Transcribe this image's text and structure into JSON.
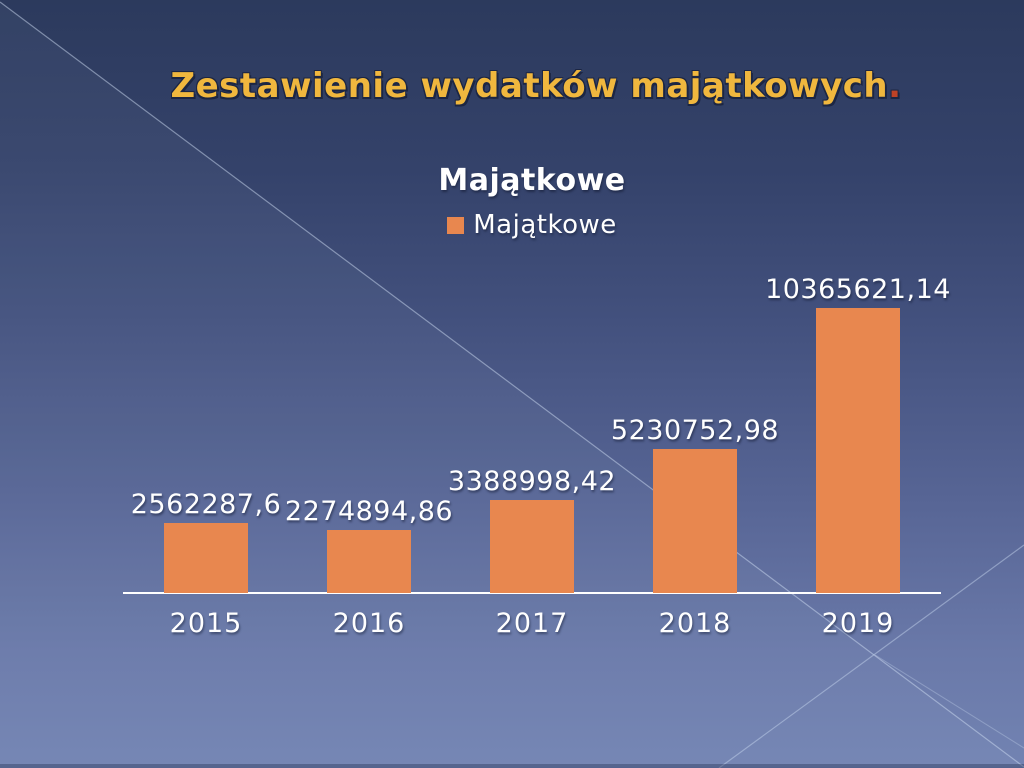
{
  "slide": {
    "title": "Zestawienie wydatków majątkowych",
    "title_period": ".",
    "title_color": "#F0B73E",
    "title_period_color": "#BF4226",
    "background_top_color": "#2c3a5d",
    "background_bottom_color": "#7283B2"
  },
  "chart_data": {
    "type": "bar",
    "title": "Majątkowe",
    "series": [
      {
        "name": "Majątkowe",
        "values": [
          2562287.6,
          2274894.86,
          3388998.42,
          5230752.98,
          10365621.14
        ]
      }
    ],
    "categories": [
      "2015",
      "2016",
      "2017",
      "2018",
      "2019"
    ],
    "data_labels": [
      "2562287,6",
      "2274894,86",
      "3388998,42",
      "5230752,98",
      "10365621,14"
    ],
    "bar_color": "#E8874F",
    "axis_line_color": "#ffffff",
    "text_color": "#ffffff",
    "ylim": [
      0,
      10365621.14
    ],
    "grid": false,
    "legend_position": "top",
    "legend_label": "Majątkowe"
  }
}
